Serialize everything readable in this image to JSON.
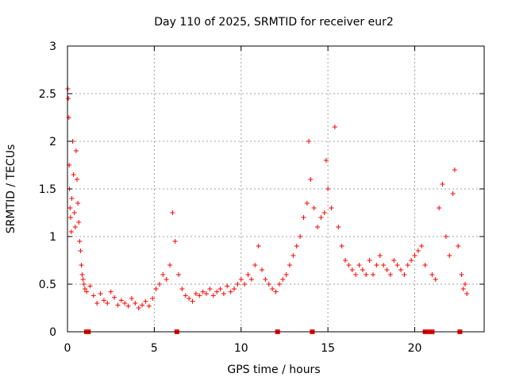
{
  "chart_data": {
    "type": "scatter",
    "title": "Day 110 of 2025, SRMTID for receiver eur2",
    "xlabel": "GPS time / hours",
    "ylabel": "SRMTID / TECUs",
    "xlim": [
      0,
      24
    ],
    "ylim": [
      0,
      3
    ],
    "xticks": [
      0,
      5,
      10,
      15,
      20
    ],
    "xtick_labels": [
      "0",
      "5",
      "10",
      "15",
      "20"
    ],
    "yticks": [
      0,
      0.5,
      1,
      1.5,
      2,
      2.5,
      3
    ],
    "ytick_labels": [
      "0",
      "0.5",
      "1",
      "1.5",
      "2",
      "2.5",
      "3"
    ],
    "grid": true,
    "marker": "plus",
    "color": "#ff0000",
    "series": [
      {
        "name": "SRMTID",
        "points": [
          [
            0.02,
            2.55
          ],
          [
            0.05,
            2.45
          ],
          [
            0.08,
            2.25
          ],
          [
            0.1,
            1.75
          ],
          [
            0.12,
            1.5
          ],
          [
            0.15,
            1.3
          ],
          [
            0.18,
            1.2
          ],
          [
            0.22,
            1.05
          ],
          [
            0.25,
            1.4
          ],
          [
            0.3,
            2.0
          ],
          [
            0.35,
            1.65
          ],
          [
            0.4,
            1.25
          ],
          [
            0.45,
            1.1
          ],
          [
            0.5,
            1.9
          ],
          [
            0.55,
            1.6
          ],
          [
            0.6,
            1.35
          ],
          [
            0.65,
            1.15
          ],
          [
            0.7,
            0.95
          ],
          [
            0.75,
            0.85
          ],
          [
            0.8,
            0.7
          ],
          [
            0.85,
            0.6
          ],
          [
            0.9,
            0.55
          ],
          [
            0.95,
            0.5
          ],
          [
            1.0,
            0.45
          ],
          [
            1.1,
            0.42
          ],
          [
            1.3,
            0.48
          ],
          [
            1.5,
            0.38
          ],
          [
            1.7,
            0.3
          ],
          [
            1.9,
            0.4
          ],
          [
            2.1,
            0.33
          ],
          [
            2.3,
            0.3
          ],
          [
            2.5,
            0.42
          ],
          [
            2.7,
            0.36
          ],
          [
            2.9,
            0.28
          ],
          [
            3.1,
            0.33
          ],
          [
            3.3,
            0.3
          ],
          [
            3.5,
            0.27
          ],
          [
            3.7,
            0.35
          ],
          [
            3.9,
            0.3
          ],
          [
            4.1,
            0.25
          ],
          [
            4.3,
            0.28
          ],
          [
            4.5,
            0.32
          ],
          [
            4.7,
            0.27
          ],
          [
            4.9,
            0.35
          ],
          [
            5.1,
            0.45
          ],
          [
            5.3,
            0.5
          ],
          [
            5.5,
            0.6
          ],
          [
            5.7,
            0.55
          ],
          [
            5.9,
            0.7
          ],
          [
            6.05,
            1.25
          ],
          [
            6.2,
            0.95
          ],
          [
            6.4,
            0.6
          ],
          [
            6.6,
            0.45
          ],
          [
            6.8,
            0.38
          ],
          [
            7.0,
            0.35
          ],
          [
            7.2,
            0.32
          ],
          [
            7.4,
            0.4
          ],
          [
            7.6,
            0.38
          ],
          [
            7.8,
            0.42
          ],
          [
            8.0,
            0.4
          ],
          [
            8.2,
            0.45
          ],
          [
            8.4,
            0.38
          ],
          [
            8.6,
            0.42
          ],
          [
            8.8,
            0.45
          ],
          [
            9.0,
            0.4
          ],
          [
            9.2,
            0.48
          ],
          [
            9.4,
            0.42
          ],
          [
            9.6,
            0.45
          ],
          [
            9.8,
            0.5
          ],
          [
            10.0,
            0.55
          ],
          [
            10.2,
            0.5
          ],
          [
            10.4,
            0.6
          ],
          [
            10.6,
            0.55
          ],
          [
            10.8,
            0.7
          ],
          [
            11.0,
            0.9
          ],
          [
            11.2,
            0.65
          ],
          [
            11.4,
            0.55
          ],
          [
            11.6,
            0.5
          ],
          [
            11.8,
            0.45
          ],
          [
            12.0,
            0.42
          ],
          [
            12.2,
            0.5
          ],
          [
            12.4,
            0.55
          ],
          [
            12.6,
            0.6
          ],
          [
            12.8,
            0.7
          ],
          [
            13.0,
            0.8
          ],
          [
            13.2,
            0.9
          ],
          [
            13.4,
            1.0
          ],
          [
            13.6,
            1.2
          ],
          [
            13.8,
            1.35
          ],
          [
            13.9,
            2.0
          ],
          [
            14.0,
            1.6
          ],
          [
            14.2,
            1.3
          ],
          [
            14.4,
            1.1
          ],
          [
            14.6,
            1.2
          ],
          [
            14.8,
            1.25
          ],
          [
            14.9,
            1.8
          ],
          [
            15.0,
            1.5
          ],
          [
            15.2,
            1.3
          ],
          [
            15.4,
            2.15
          ],
          [
            15.6,
            1.1
          ],
          [
            15.8,
            0.9
          ],
          [
            16.0,
            0.75
          ],
          [
            16.2,
            0.7
          ],
          [
            16.4,
            0.65
          ],
          [
            16.6,
            0.6
          ],
          [
            16.8,
            0.7
          ],
          [
            17.0,
            0.65
          ],
          [
            17.2,
            0.6
          ],
          [
            17.4,
            0.75
          ],
          [
            17.6,
            0.6
          ],
          [
            17.8,
            0.7
          ],
          [
            18.0,
            0.8
          ],
          [
            18.2,
            0.7
          ],
          [
            18.4,
            0.65
          ],
          [
            18.6,
            0.6
          ],
          [
            18.8,
            0.75
          ],
          [
            19.0,
            0.7
          ],
          [
            19.2,
            0.65
          ],
          [
            19.4,
            0.6
          ],
          [
            19.6,
            0.7
          ],
          [
            19.8,
            0.75
          ],
          [
            20.0,
            0.8
          ],
          [
            20.2,
            0.85
          ],
          [
            20.4,
            0.9
          ],
          [
            20.6,
            0.7
          ],
          [
            21.0,
            0.6
          ],
          [
            21.2,
            0.55
          ],
          [
            21.4,
            1.3
          ],
          [
            21.6,
            1.55
          ],
          [
            21.8,
            1.0
          ],
          [
            22.0,
            0.8
          ],
          [
            22.2,
            1.45
          ],
          [
            22.3,
            1.7
          ],
          [
            22.5,
            0.9
          ],
          [
            22.7,
            0.6
          ],
          [
            22.8,
            0.45
          ],
          [
            22.9,
            0.5
          ],
          [
            23.0,
            0.4
          ]
        ]
      }
    ],
    "zero_markers_x": [
      1.1,
      1.2,
      6.3,
      12.1,
      14.1,
      20.6,
      20.8,
      21.0,
      22.6
    ]
  }
}
